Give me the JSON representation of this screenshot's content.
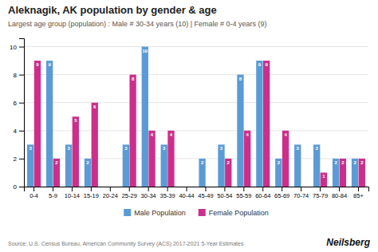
{
  "chart_data": {
    "type": "bar",
    "title": "Aleknagik, AK population by gender & age",
    "subtitle": "Largest age group (population) : Male # 30-34 years (10) | Female # 0-4 years (9)",
    "annotations": [
      "Source: U.S. Census Bureau, American Community Survey (ACS) 2017-2021 5-Year Estimates",
      "Neilsberg"
    ],
    "categories": [
      "0-4",
      "5-9",
      "10-14",
      "15-19",
      "20-24",
      "25-29",
      "30-34",
      "35-39",
      "40-44",
      "45-49",
      "50-54",
      "55-59",
      "60-64",
      "65-69",
      "70-74",
      "75-79",
      "80-84",
      "85+"
    ],
    "series": [
      {
        "name": "Male Population",
        "color": "#5b9bd5",
        "values": [
          3,
          9,
          3,
          2,
          0,
          3,
          10,
          3,
          0,
          2,
          3,
          8,
          9,
          2,
          3,
          3,
          2,
          2
        ]
      },
      {
        "name": "Female Population",
        "color": "#cc2f8a",
        "values": [
          9,
          2,
          5,
          6,
          0,
          8,
          4,
          4,
          0,
          0,
          2,
          4,
          9,
          4,
          0,
          1,
          2,
          2
        ]
      }
    ],
    "ylim": [
      0,
      10.6
    ],
    "yticks": [
      0,
      2,
      4,
      6,
      8,
      10
    ],
    "grid": true,
    "legend": "bottom",
    "data_labels": true
  }
}
